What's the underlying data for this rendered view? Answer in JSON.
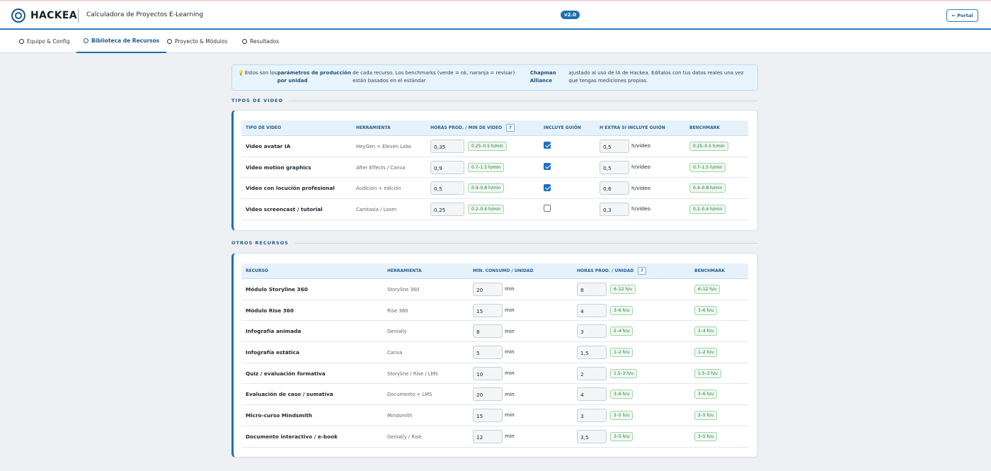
{
  "header": {
    "logo": "HACKEA",
    "title": "Calculadora de Proyectos E-Learning",
    "version": "v2.0",
    "portal": "← Portal"
  },
  "tabs": [
    "Equipo & Config",
    "Biblioteca de Recursos",
    "Proyecto & Módulos",
    "Resultados"
  ],
  "notice": {
    "icon": "💡",
    "parts": [
      "Estos son los",
      "parámetros de producción por unidad",
      "de cada recurso. Los benchmarks (verde = ok, naranja = revisar) están basados en el estándar",
      "Chapman Alliance",
      "ajustado al uso de IA de Hackea. Edítalos con tus datos reales una vez que tengas mediciones propias."
    ]
  },
  "video_section": {
    "title": "TIPOS DE VIDEO",
    "help": "?",
    "unit": "h/video",
    "headers": [
      "TIPO DE VIDEO",
      "HERRAMIENTA",
      "HORAS PROD. / MIN DE VIDEO",
      "INCLUYE GUIÓN",
      "H EXTRA SI INCLUYE GUIÓN",
      "BENCHMARK"
    ],
    "rows": [
      {
        "tipo": "Video avatar IA",
        "herramienta": "HeyGen + Eleven Labs",
        "horas": "0,35",
        "guion": true,
        "extra": "0,5",
        "benchmark": "0.25–0.5 h/min"
      },
      {
        "tipo": "Video motion graphics",
        "herramienta": "After Effects / Canva",
        "horas": "0,9",
        "guion": true,
        "extra": "0,5",
        "benchmark": "0.7–1.5 h/min"
      },
      {
        "tipo": "Video con locución profesional",
        "herramienta": "Audición + edición",
        "horas": "0,5",
        "guion": true,
        "extra": "0,6",
        "benchmark": "0.4–0.8 h/min"
      },
      {
        "tipo": "Video screencast / tutorial",
        "herramienta": "Camtasia / Loom",
        "horas": "0,25",
        "guion": false,
        "extra": "0,3",
        "benchmark": "0.2–0.4 h/min"
      }
    ]
  },
  "resources_section": {
    "title": "OTROS RECURSOS",
    "help": "?",
    "unit": "min",
    "headers": [
      "RECURSO",
      "HERRAMIENTA",
      "MIN. CONSUMO / UNIDAD",
      "HORAS PROD. / UNIDAD",
      "BENCHMARK"
    ],
    "rows": [
      {
        "recurso": "Módulo Storyline 360",
        "herramienta": "Storyline 360",
        "consumo": "20",
        "horas": "8",
        "benchmark": "6–12 h/u"
      },
      {
        "recurso": "Módulo Rise 360",
        "herramienta": "Rise 360",
        "consumo": "15",
        "horas": "4",
        "benchmark": "3–6 h/u"
      },
      {
        "recurso": "Infografía animada",
        "herramienta": "Genially",
        "consumo": "8",
        "horas": "3",
        "benchmark": "2–4 h/u"
      },
      {
        "recurso": "Infografía estática",
        "herramienta": "Canva",
        "consumo": "5",
        "horas": "1,5",
        "benchmark": "1–2 h/u"
      },
      {
        "recurso": "Quiz / evaluación formativa",
        "herramienta": "Storyline / Rise / LMS",
        "consumo": "10",
        "horas": "2",
        "benchmark": "1.5–3 h/u"
      },
      {
        "recurso": "Evaluación de caso / sumativa",
        "herramienta": "Documento + LMS",
        "consumo": "20",
        "horas": "4",
        "benchmark": "3–6 h/u"
      },
      {
        "recurso": "Micro-curso Mindsmith",
        "herramienta": "Mindsmith",
        "consumo": "15",
        "horas": "3",
        "benchmark": "2–5 h/u"
      },
      {
        "recurso": "Documento interactivo / e-book",
        "herramienta": "Genially / Rise",
        "consumo": "12",
        "horas": "3,5",
        "benchmark": "3–5 h/u"
      }
    ]
  }
}
